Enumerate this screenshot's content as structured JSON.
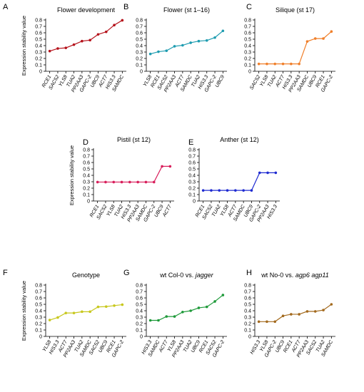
{
  "chart_data": [
    {
      "panel": "A",
      "type": "line",
      "title": "Flower development",
      "ylabel": "Expression stability value",
      "ylim": [
        0,
        0.8
      ],
      "yticks": [
        "0",
        "0.1",
        "0.2",
        "0.3",
        "0.4",
        "0.5",
        "0.6",
        "0.7",
        "0.8"
      ],
      "color": "#b5121b",
      "categories": [
        "RCE1",
        "SAC52",
        "YLS8",
        "TUA2",
        "PP2AA3",
        "GAPC-2",
        "UBC9",
        "ACT7",
        "HIS3.3",
        "SAMDC"
      ],
      "values": [
        0.315,
        0.355,
        0.365,
        0.415,
        0.47,
        0.485,
        0.575,
        0.615,
        0.72,
        0.795
      ]
    },
    {
      "panel": "B",
      "type": "line",
      "title": "Flower (st 1–16)",
      "ylabel": "",
      "ylim": [
        0,
        0.8
      ],
      "yticks": [
        "0",
        "0.1",
        "0.2",
        "0.3",
        "0.4",
        "0.5",
        "0.6",
        "0.7",
        "0.8"
      ],
      "color": "#1e9cb0",
      "categories": [
        "YLS8",
        "RCE1",
        "SAC52",
        "PP2AA3",
        "ACT7",
        "SAMDC",
        "TUA2",
        "HIS3.3",
        "GAPC-2",
        "UBC9"
      ],
      "values": [
        0.27,
        0.305,
        0.32,
        0.39,
        0.405,
        0.445,
        0.47,
        0.48,
        0.525,
        0.63
      ]
    },
    {
      "panel": "C",
      "type": "line",
      "title": "Silique (st 17)",
      "ylabel": "",
      "ylim": [
        0,
        0.8
      ],
      "yticks": [
        "0",
        "0.1",
        "0.2",
        "0.3",
        "0.4",
        "0.5",
        "0.6",
        "0.7",
        "0.8"
      ],
      "color": "#f07f2a",
      "categories": [
        "SAC52",
        "YLS8",
        "TUA2",
        "ACT7",
        "HIS3.3",
        "PP2AA3",
        "SAMDC",
        "UBC9",
        "RCE1",
        "GAPC-2"
      ],
      "values": [
        0.115,
        0.115,
        0.115,
        0.115,
        0.115,
        0.115,
        0.465,
        0.51,
        0.51,
        0.62
      ]
    },
    {
      "panel": "D",
      "type": "line",
      "title": "Pistil (st 12)",
      "ylabel": "Expression stability value",
      "ylim": [
        0,
        0.8
      ],
      "yticks": [
        "0",
        "0.1",
        "0.2",
        "0.3",
        "0.4",
        "0.5",
        "0.6",
        "0.7",
        "0.8"
      ],
      "color": "#d81e5b",
      "categories": [
        "RCE1",
        "SAC52",
        "YLS8",
        "TUA2",
        "HIS3.3",
        "PP2AA3",
        "SAMDC",
        "GAPC-2",
        "UBC9",
        "ACT7"
      ],
      "values": [
        0.295,
        0.295,
        0.295,
        0.295,
        0.295,
        0.295,
        0.295,
        0.295,
        0.54,
        0.54
      ]
    },
    {
      "panel": "E",
      "type": "line",
      "title": "Anther (st 12)",
      "ylabel": "",
      "ylim": [
        0,
        0.8
      ],
      "yticks": [
        "0",
        "0.1",
        "0.2",
        "0.3",
        "0.4",
        "0.5",
        "0.6",
        "0.7",
        "0.8"
      ],
      "color": "#1f2bd1",
      "categories": [
        "RCE1",
        "SAC52",
        "TUA2",
        "YLS8",
        "ACT7",
        "SAMDC",
        "UBC9",
        "GAPC-2",
        "PP2AA3",
        "HIS3.3"
      ],
      "values": [
        0.165,
        0.165,
        0.165,
        0.165,
        0.165,
        0.165,
        0.165,
        0.44,
        0.44,
        0.44
      ]
    },
    {
      "panel": "F",
      "type": "line",
      "title": "Genotype",
      "ylabel": "Expression stability value",
      "ylim": [
        0,
        0.8
      ],
      "yticks": [
        "0",
        "0.1",
        "0.2",
        "0.3",
        "0.4",
        "0.5",
        "0.6",
        "0.7",
        "0.8"
      ],
      "color": "#c8c81e",
      "categories": [
        "YLS8",
        "HIS3.3",
        "ACT7",
        "PP2AA3",
        "TUA2",
        "SAMDC",
        "SAC52",
        "UBC9",
        "RCE1",
        "GAPC-2"
      ],
      "values": [
        0.255,
        0.295,
        0.365,
        0.365,
        0.385,
        0.385,
        0.46,
        0.465,
        0.48,
        0.495
      ]
    },
    {
      "panel": "G",
      "type": "line",
      "title": "wt Col-0 vs. ",
      "title_italic": "jagger",
      "ylabel": "",
      "ylim": [
        0,
        0.8
      ],
      "yticks": [
        "0",
        "0.1",
        "0.2",
        "0.3",
        "0.4",
        "0.5",
        "0.6",
        "0.7",
        "0.8"
      ],
      "color": "#1f9a3a",
      "categories": [
        "HIS3.3",
        "SAMDC",
        "ACT7",
        "YLS8",
        "PP2AA3",
        "TUA2",
        "UBC9",
        "RCE1",
        "SAC52",
        "GAPC-2"
      ],
      "values": [
        0.25,
        0.25,
        0.31,
        0.31,
        0.38,
        0.4,
        0.445,
        0.46,
        0.545,
        0.645
      ]
    },
    {
      "panel": "H",
      "type": "line",
      "title": "wt No-0 vs. ",
      "title_italic": "agp6 agp11",
      "ylabel": "",
      "ylim": [
        0,
        0.8
      ],
      "yticks": [
        "0",
        "0.1",
        "0.2",
        "0.3",
        "0.4",
        "0.5",
        "0.6",
        "0.7",
        "0.8"
      ],
      "color": "#a36a1e",
      "categories": [
        "HIS3.3",
        "YLS8",
        "GAPC-2",
        "UBC9",
        "RCE1",
        "ACT7",
        "PP2AA3",
        "SAC52",
        "TUA2",
        "SAMDC"
      ],
      "values": [
        0.23,
        0.23,
        0.23,
        0.32,
        0.345,
        0.345,
        0.39,
        0.39,
        0.41,
        0.5
      ]
    }
  ]
}
